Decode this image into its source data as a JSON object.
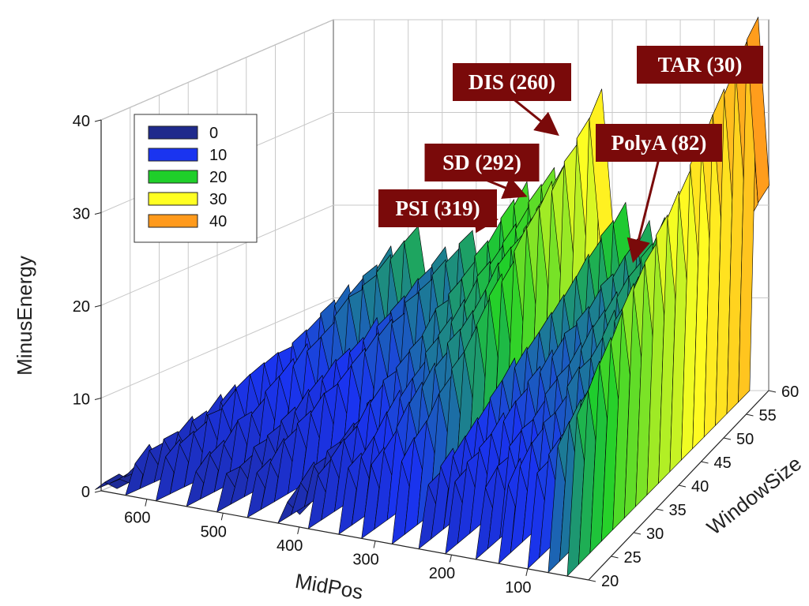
{
  "colors": {
    "annotation_bg": "#7a0a0a",
    "arrow": "#7a0a0a",
    "grid": "#c8c8c8",
    "mesh": "#000000"
  },
  "chart_data": {
    "type": "surface-3d",
    "xlabel": "MidPos",
    "ylabel": "WindowSize",
    "zlabel": "MinusEnergy",
    "xlim": [
      660,
      20
    ],
    "ylim": [
      20,
      60
    ],
    "zlim": [
      0,
      40
    ],
    "x_ticks": [
      "600",
      "500",
      "400",
      "300",
      "200",
      "100"
    ],
    "y_ticks": [
      "20",
      "25",
      "30",
      "35",
      "40",
      "45",
      "50",
      "55",
      "60"
    ],
    "z_ticks": [
      "0",
      "10",
      "20",
      "30",
      "40"
    ],
    "grid": true,
    "legend": {
      "placement": "top-left",
      "entries": [
        {
          "label": "0",
          "color": "#1f2a8c"
        },
        {
          "label": "10",
          "color": "#1a34f0"
        },
        {
          "label": "20",
          "color": "#1fcf2a"
        },
        {
          "label": "30",
          "color": "#ffff22"
        },
        {
          "label": "40",
          "color": "#ff9a1c"
        }
      ]
    },
    "annotations": [
      {
        "label": "TAR (30)",
        "midpos": 30,
        "energy": 40
      },
      {
        "label": "DIS (260)",
        "midpos": 260,
        "energy": 32
      },
      {
        "label": "PolyA (82)",
        "midpos": 82,
        "energy": 24
      },
      {
        "label": "SD (292)",
        "midpos": 292,
        "energy": 26
      },
      {
        "label": "PSI (319)",
        "midpos": 319,
        "energy": 24
      }
    ],
    "ridges": [
      {
        "midpos": 650,
        "energy_min": 1,
        "energy_max": 3
      },
      {
        "midpos": 610,
        "energy_min": 4,
        "energy_max": 10
      },
      {
        "midpos": 570,
        "energy_min": 5,
        "energy_max": 15
      },
      {
        "midpos": 530,
        "energy_min": 4,
        "energy_max": 18
      },
      {
        "midpos": 490,
        "energy_min": 4,
        "energy_max": 15
      },
      {
        "midpos": 450,
        "energy_min": 5,
        "energy_max": 17
      },
      {
        "midpos": 410,
        "energy_min": 3,
        "energy_max": 14
      },
      {
        "midpos": 370,
        "energy_min": 6,
        "energy_max": 22
      },
      {
        "midpos": 330,
        "energy_min": 7,
        "energy_max": 24
      },
      {
        "midpos": 300,
        "energy_min": 8,
        "energy_max": 26
      },
      {
        "midpos": 260,
        "energy_min": 9,
        "energy_max": 32
      },
      {
        "midpos": 225,
        "energy_min": 7,
        "energy_max": 20
      },
      {
        "midpos": 190,
        "energy_min": 8,
        "energy_max": 18
      },
      {
        "midpos": 150,
        "energy_min": 8,
        "energy_max": 20
      },
      {
        "midpos": 120,
        "energy_min": 9,
        "energy_max": 22
      },
      {
        "midpos": 82,
        "energy_min": 10,
        "energy_max": 24
      },
      {
        "midpos": 55,
        "energy_min": 14,
        "energy_max": 30
      },
      {
        "midpos": 30,
        "energy_min": 18,
        "energy_max": 40
      }
    ]
  }
}
